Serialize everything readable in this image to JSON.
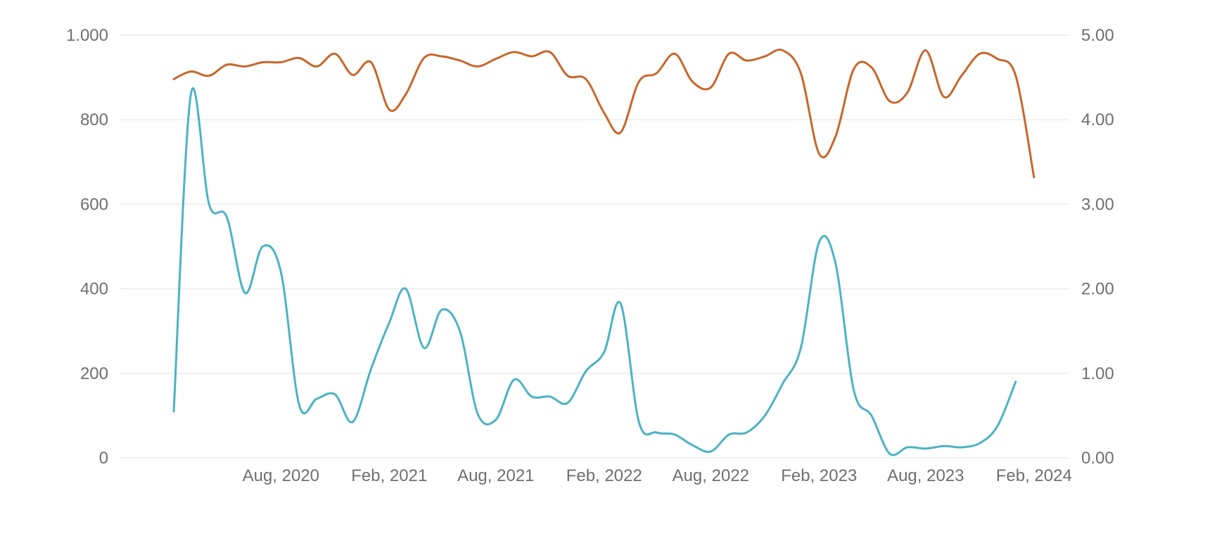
{
  "chart_data": {
    "type": "line",
    "x_axis": {
      "type": "date",
      "tick_labels": [
        "Aug, 2020",
        "Feb, 2021",
        "Aug, 2021",
        "Feb, 2022",
        "Aug, 2022",
        "Feb, 2023",
        "Aug, 2023",
        "Feb, 2024"
      ],
      "tick_dates": [
        "2020-08-01",
        "2021-02-01",
        "2021-08-01",
        "2022-02-01",
        "2022-08-01",
        "2023-02-01",
        "2023-08-01",
        "2024-02-01"
      ],
      "range": [
        "2019-11-01",
        "2024-04-01"
      ]
    },
    "y_left": {
      "ylim": [
        0,
        1000
      ],
      "ticks": [
        0,
        200,
        400,
        600,
        800,
        1000
      ],
      "tick_labels": [
        "0",
        "200",
        "400",
        "600",
        "800",
        "1.000"
      ]
    },
    "y_right": {
      "ylim": [
        0,
        5
      ],
      "ticks": [
        0,
        1,
        2,
        3,
        4,
        5
      ],
      "tick_labels": [
        "0.00",
        "1.00",
        "2.00",
        "3.00",
        "4.00",
        "5.00"
      ]
    },
    "grid": true,
    "series": [
      {
        "axis": "right",
        "color": "#c8662a",
        "x": [
          "2020-02-01",
          "2020-03-01",
          "2020-04-01",
          "2020-05-01",
          "2020-06-01",
          "2020-07-01",
          "2020-08-01",
          "2020-09-01",
          "2020-10-01",
          "2020-11-01",
          "2020-12-01",
          "2021-01-01",
          "2021-02-01",
          "2021-03-01",
          "2021-04-01",
          "2021-05-01",
          "2021-06-01",
          "2021-07-01",
          "2021-08-01",
          "2021-09-01",
          "2021-10-01",
          "2021-11-01",
          "2021-12-01",
          "2022-01-01",
          "2022-02-01",
          "2022-03-01",
          "2022-04-01",
          "2022-05-01",
          "2022-06-01",
          "2022-07-01",
          "2022-08-01",
          "2022-09-01",
          "2022-10-01",
          "2022-11-01",
          "2022-12-01",
          "2023-01-01",
          "2023-02-01",
          "2023-03-01",
          "2023-04-01",
          "2023-05-01",
          "2023-06-01",
          "2023-07-01",
          "2023-08-01",
          "2023-09-01",
          "2023-10-01",
          "2023-11-01",
          "2023-12-01",
          "2024-01-01",
          "2024-02-01"
        ],
        "values": [
          4.48,
          4.57,
          4.52,
          4.65,
          4.63,
          4.68,
          4.68,
          4.73,
          4.63,
          4.78,
          4.53,
          4.68,
          4.12,
          4.3,
          4.73,
          4.75,
          4.7,
          4.63,
          4.72,
          4.8,
          4.75,
          4.8,
          4.52,
          4.48,
          4.08,
          3.85,
          4.45,
          4.55,
          4.78,
          4.45,
          4.38,
          4.78,
          4.7,
          4.75,
          4.82,
          4.55,
          3.6,
          3.8,
          4.6,
          4.62,
          4.22,
          4.32,
          4.82,
          4.27,
          4.52,
          4.78,
          4.72,
          4.52,
          3.32
        ]
      },
      {
        "axis": "left",
        "color": "#4bb3c4",
        "x": [
          "2020-02-01",
          "2020-03-01",
          "2020-04-01",
          "2020-05-01",
          "2020-06-01",
          "2020-07-01",
          "2020-08-01",
          "2020-09-01",
          "2020-10-01",
          "2020-11-01",
          "2020-12-01",
          "2021-01-01",
          "2021-02-01",
          "2021-03-01",
          "2021-04-01",
          "2021-05-01",
          "2021-06-01",
          "2021-07-01",
          "2021-08-01",
          "2021-09-01",
          "2021-10-01",
          "2021-11-01",
          "2021-12-01",
          "2022-01-01",
          "2022-02-01",
          "2022-03-01",
          "2022-04-01",
          "2022-05-01",
          "2022-06-01",
          "2022-07-01",
          "2022-08-01",
          "2022-09-01",
          "2022-10-01",
          "2022-11-01",
          "2022-12-01",
          "2023-01-01",
          "2023-02-01",
          "2023-03-01",
          "2023-04-01",
          "2023-05-01",
          "2023-06-01",
          "2023-07-01",
          "2023-08-01",
          "2023-09-01",
          "2023-10-01",
          "2023-11-01",
          "2023-12-01",
          "2024-01-01",
          "2024-02-01"
        ],
        "values": [
          110,
          860,
          600,
          570,
          390,
          500,
          440,
          125,
          140,
          150,
          85,
          210,
          320,
          400,
          260,
          350,
          300,
          105,
          90,
          185,
          145,
          145,
          130,
          205,
          250,
          365,
          85,
          60,
          55,
          30,
          15,
          55,
          60,
          100,
          175,
          260,
          510,
          460,
          160,
          100,
          10,
          25,
          22,
          28,
          25,
          35,
          75,
          180,
          null
        ]
      }
    ]
  }
}
